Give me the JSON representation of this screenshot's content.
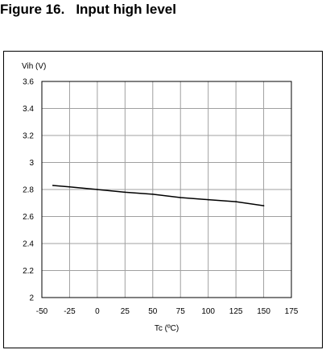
{
  "figure": {
    "number": "Figure 16.",
    "caption": "Input high level"
  },
  "chart_data": {
    "type": "line",
    "title": "",
    "xlabel": "Tc (ºC)",
    "ylabel": "Vih (V)",
    "xlim": [
      -50,
      175
    ],
    "ylim": [
      2,
      3.6
    ],
    "xticks": [
      -50,
      -25,
      0,
      25,
      50,
      75,
      100,
      125,
      150,
      175
    ],
    "yticks": [
      2,
      2.2,
      2.4,
      2.6,
      2.8,
      3,
      3.2,
      3.4,
      3.6
    ],
    "grid": true,
    "colors": {
      "line": "#000000",
      "grid": "#a0a0a0",
      "axis": "#000000"
    },
    "series": [
      {
        "x": [
          -40,
          -25,
          0,
          25,
          50,
          75,
          100,
          125,
          150
        ],
        "y": [
          2.83,
          2.82,
          2.8,
          2.78,
          2.765,
          2.74,
          2.725,
          2.71,
          2.68
        ]
      }
    ]
  }
}
